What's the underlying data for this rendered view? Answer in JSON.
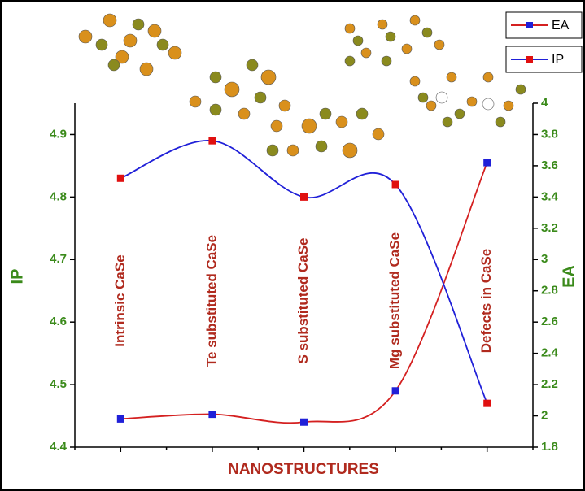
{
  "chart_data": {
    "type": "line",
    "x_label": "NANOSTRUCTURES",
    "y_label": "IP",
    "y2_label": "EA",
    "categories": [
      "Intrinsic CaSe",
      "Te substituted CaSe",
      "S substituted CaSe",
      "Mg substituted CaSe",
      "Defects in CaSe"
    ],
    "series": [
      {
        "name": "EA",
        "color": "#d42020",
        "marker_color": "#2020d8",
        "axis": "y2",
        "values": [
          1.98,
          2.01,
          1.96,
          2.16,
          3.62
        ]
      },
      {
        "name": "IP",
        "color": "#2020d8",
        "marker_color": "#e01010",
        "values": [
          4.83,
          4.89,
          4.8,
          4.82,
          4.47
        ]
      }
    ],
    "ylim": [
      4.4,
      4.95
    ],
    "yticks": [
      4.4,
      4.5,
      4.6,
      4.7,
      4.8,
      4.9
    ],
    "y2lim": [
      1.8,
      4.0
    ],
    "y2ticks": [
      1.8,
      2.0,
      2.2,
      2.4,
      2.6,
      2.8,
      3.0,
      3.2,
      3.4,
      3.6,
      3.8,
      4.0
    ],
    "legend": "top-right"
  }
}
